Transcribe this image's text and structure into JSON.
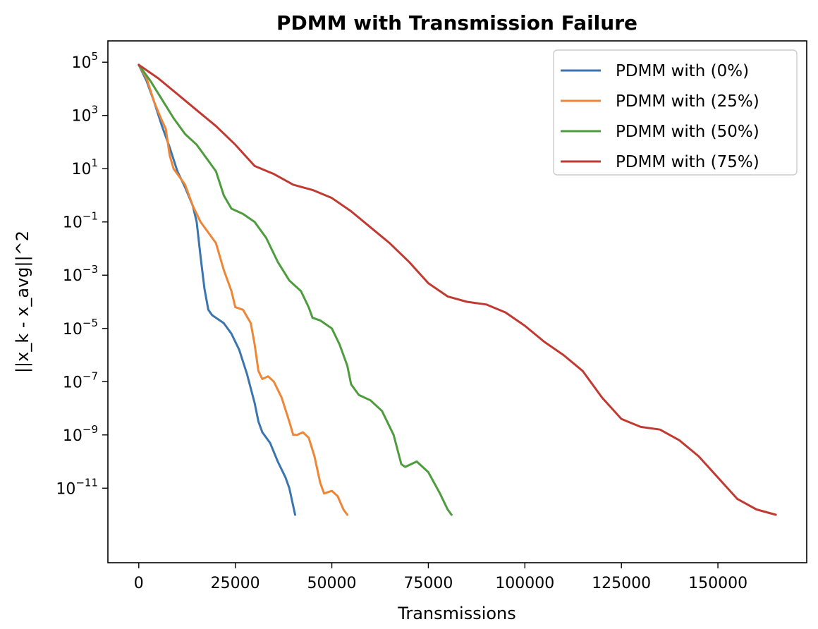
{
  "chart_data": {
    "type": "line",
    "title": "PDMM with Transmission Failure",
    "xlabel": "Transmissions",
    "ylabel": "||x_k - x_avg||^2",
    "yscale": "log",
    "xlim": [
      -8000,
      173000
    ],
    "ylim_exponent": [
      -13.8,
      5.8
    ],
    "grid": false,
    "legend_position": "top-right",
    "x_ticks": [
      {
        "value": 0,
        "label": "0"
      },
      {
        "value": 25000,
        "label": "25000"
      },
      {
        "value": 50000,
        "label": "50000"
      },
      {
        "value": 75000,
        "label": "75000"
      },
      {
        "value": 100000,
        "label": "100000"
      },
      {
        "value": 125000,
        "label": "125000"
      },
      {
        "value": 150000,
        "label": "150000"
      }
    ],
    "y_ticks": [
      {
        "exponent": 5,
        "base": "10",
        "sup": "5"
      },
      {
        "exponent": 3,
        "base": "10",
        "sup": "3"
      },
      {
        "exponent": 1,
        "base": "10",
        "sup": "1"
      },
      {
        "exponent": -1,
        "base": "10",
        "sup": "−1"
      },
      {
        "exponent": -3,
        "base": "10",
        "sup": "−3"
      },
      {
        "exponent": -5,
        "base": "10",
        "sup": "−5"
      },
      {
        "exponent": -7,
        "base": "10",
        "sup": "−7"
      },
      {
        "exponent": -9,
        "base": "10",
        "sup": "−9"
      },
      {
        "exponent": -11,
        "base": "10",
        "sup": "−11"
      }
    ],
    "series": [
      {
        "name": "PDMM with (0%)",
        "color": "#3a75b0",
        "points": [
          [
            0,
            4.9
          ],
          [
            2000,
            4.3
          ],
          [
            4000,
            3.5
          ],
          [
            6000,
            2.6
          ],
          [
            8000,
            1.8
          ],
          [
            10000,
            0.9
          ],
          [
            12000,
            0.3
          ],
          [
            14000,
            -0.4
          ],
          [
            15000,
            -1.0
          ],
          [
            16000,
            -2.3
          ],
          [
            17000,
            -3.5
          ],
          [
            18000,
            -4.3
          ],
          [
            19000,
            -4.5
          ],
          [
            20000,
            -4.6
          ],
          [
            22000,
            -4.8
          ],
          [
            24000,
            -5.2
          ],
          [
            26000,
            -5.8
          ],
          [
            28000,
            -6.7
          ],
          [
            30000,
            -7.8
          ],
          [
            31000,
            -8.5
          ],
          [
            32000,
            -8.9
          ],
          [
            34000,
            -9.3
          ],
          [
            36000,
            -10.0
          ],
          [
            38000,
            -10.6
          ],
          [
            39000,
            -11.0
          ],
          [
            40500,
            -12.0
          ]
        ]
      },
      {
        "name": "PDMM with (25%)",
        "color": "#ee8636",
        "points": [
          [
            0,
            4.9
          ],
          [
            2000,
            4.4
          ],
          [
            4000,
            3.5
          ],
          [
            6000,
            2.8
          ],
          [
            7000,
            2.5
          ],
          [
            8000,
            1.5
          ],
          [
            9000,
            1.0
          ],
          [
            12000,
            0.4
          ],
          [
            14000,
            -0.4
          ],
          [
            16000,
            -1.0
          ],
          [
            18000,
            -1.4
          ],
          [
            20000,
            -1.8
          ],
          [
            22000,
            -2.8
          ],
          [
            24000,
            -3.6
          ],
          [
            25000,
            -4.2
          ],
          [
            27000,
            -4.3
          ],
          [
            29000,
            -4.8
          ],
          [
            30000,
            -5.6
          ],
          [
            31000,
            -6.6
          ],
          [
            32000,
            -6.9
          ],
          [
            33500,
            -6.8
          ],
          [
            35000,
            -7.0
          ],
          [
            37000,
            -7.6
          ],
          [
            39000,
            -8.5
          ],
          [
            40000,
            -9.0
          ],
          [
            41000,
            -9.0
          ],
          [
            42500,
            -8.9
          ],
          [
            44000,
            -9.1
          ],
          [
            45500,
            -9.8
          ],
          [
            47000,
            -10.8
          ],
          [
            48000,
            -11.2
          ],
          [
            50000,
            -11.1
          ],
          [
            51500,
            -11.3
          ],
          [
            53000,
            -11.8
          ],
          [
            54000,
            -12.0
          ]
        ]
      },
      {
        "name": "PDMM with (50%)",
        "color": "#4d9c3d",
        "points": [
          [
            0,
            4.9
          ],
          [
            3000,
            4.3
          ],
          [
            6000,
            3.6
          ],
          [
            9000,
            2.9
          ],
          [
            12000,
            2.3
          ],
          [
            15000,
            1.9
          ],
          [
            18000,
            1.3
          ],
          [
            20000,
            0.9
          ],
          [
            22000,
            0.0
          ],
          [
            24000,
            -0.5
          ],
          [
            27000,
            -0.7
          ],
          [
            30000,
            -1.0
          ],
          [
            33000,
            -1.6
          ],
          [
            36000,
            -2.5
          ],
          [
            39000,
            -3.2
          ],
          [
            42000,
            -3.6
          ],
          [
            44000,
            -4.2
          ],
          [
            45000,
            -4.6
          ],
          [
            47000,
            -4.7
          ],
          [
            50000,
            -5.0
          ],
          [
            52000,
            -5.6
          ],
          [
            54000,
            -6.4
          ],
          [
            55000,
            -7.1
          ],
          [
            57000,
            -7.5
          ],
          [
            60000,
            -7.7
          ],
          [
            63000,
            -8.1
          ],
          [
            66000,
            -9.0
          ],
          [
            68000,
            -10.1
          ],
          [
            69000,
            -10.2
          ],
          [
            72000,
            -10.0
          ],
          [
            75000,
            -10.4
          ],
          [
            78000,
            -11.2
          ],
          [
            80000,
            -11.8
          ],
          [
            81000,
            -12.0
          ]
        ]
      },
      {
        "name": "PDMM with (75%)",
        "color": "#c13a32",
        "points": [
          [
            0,
            4.9
          ],
          [
            5000,
            4.4
          ],
          [
            10000,
            3.8
          ],
          [
            15000,
            3.2
          ],
          [
            20000,
            2.6
          ],
          [
            25000,
            1.9
          ],
          [
            30000,
            1.1
          ],
          [
            35000,
            0.8
          ],
          [
            40000,
            0.4
          ],
          [
            45000,
            0.2
          ],
          [
            50000,
            -0.1
          ],
          [
            55000,
            -0.6
          ],
          [
            60000,
            -1.2
          ],
          [
            65000,
            -1.8
          ],
          [
            70000,
            -2.5
          ],
          [
            75000,
            -3.3
          ],
          [
            80000,
            -3.8
          ],
          [
            85000,
            -4.0
          ],
          [
            90000,
            -4.1
          ],
          [
            95000,
            -4.4
          ],
          [
            100000,
            -4.9
          ],
          [
            105000,
            -5.5
          ],
          [
            110000,
            -6.0
          ],
          [
            115000,
            -6.6
          ],
          [
            120000,
            -7.6
          ],
          [
            125000,
            -8.4
          ],
          [
            130000,
            -8.7
          ],
          [
            135000,
            -8.8
          ],
          [
            140000,
            -9.2
          ],
          [
            145000,
            -9.8
          ],
          [
            150000,
            -10.6
          ],
          [
            155000,
            -11.4
          ],
          [
            160000,
            -11.8
          ],
          [
            165000,
            -12.0
          ]
        ]
      }
    ]
  }
}
